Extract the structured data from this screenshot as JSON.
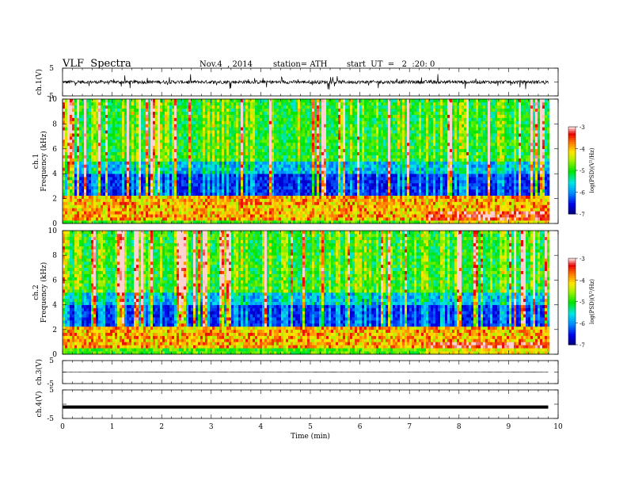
{
  "header": {
    "title": "VLF  Spectra",
    "date": "Nov.4  , 2014",
    "station": "station= ATH",
    "start": "start  UT  =   2  :20: 0"
  },
  "chart_data": [
    {
      "type": "line",
      "name": "ch1-waveform",
      "ylabel": "ch.1(V)",
      "ylim": [
        -5,
        5
      ],
      "yticks": [
        "5",
        "-5"
      ],
      "xlim": [
        0,
        10
      ],
      "x_end": 9.8,
      "baseline": 0,
      "amplitude_typical": 1.0,
      "color": "#000000"
    },
    {
      "type": "heatmap",
      "name": "ch1-spectrogram",
      "ylabel": "ch.1\nFrequency (kHz)",
      "ylim": [
        0,
        10
      ],
      "yticks": [
        "0",
        "2",
        "4",
        "6",
        "8",
        "10"
      ],
      "xlim": [
        0,
        10
      ],
      "x_end": 9.8,
      "colorbar": {
        "label": "log(PSD)(V²/Hz)",
        "range": [
          -7,
          -3
        ],
        "ticks": [
          "-3",
          "-4",
          "-5",
          "-6",
          "-7"
        ]
      },
      "bands_kHz": [
        0.3,
        0.55,
        0.8,
        1.05,
        1.3,
        1.55,
        1.8,
        2.0,
        2.25,
        2.6,
        3.0
      ],
      "lf_shift_at_min": 7.3
    },
    {
      "type": "heatmap",
      "name": "ch2-spectrogram",
      "ylabel": "ch.2\nFrequency (kHz)",
      "ylim": [
        0,
        10
      ],
      "yticks": [
        "0",
        "2",
        "4",
        "6",
        "8",
        "10"
      ],
      "xlim": [
        0,
        10
      ],
      "x_end": 9.8,
      "colorbar": {
        "label": "log(PSD)(V²/Hz)",
        "range": [
          -7,
          -3
        ],
        "ticks": [
          "-3",
          "-4",
          "-5",
          "-6",
          "-7"
        ]
      },
      "bands_kHz": [
        0.5,
        0.8,
        1.1,
        1.4,
        1.75,
        2.0,
        2.4,
        2.8,
        3.3
      ],
      "lf_shift_at_min": 7.3
    },
    {
      "type": "line",
      "name": "ch3-waveform",
      "ylabel": "ch.3(V)",
      "ylim": [
        -5,
        5
      ],
      "yticks": [
        "5",
        "-5"
      ],
      "xlim": [
        0,
        10
      ],
      "x_end": 9.8,
      "baseline": 0,
      "amplitude_typical": 0.08,
      "color": "#000000"
    },
    {
      "type": "line",
      "name": "ch4-waveform",
      "ylabel": "ch.4(V)",
      "ylim": [
        -5,
        5
      ],
      "yticks": [
        "5",
        "-5"
      ],
      "xlim": [
        0,
        10
      ],
      "x_end": 9.8,
      "baseline": -1,
      "amplitude_typical": 0.15,
      "color": "#000000",
      "xlabel": "Time  (min)",
      "xticks": [
        "0",
        "1",
        "2",
        "3",
        "4",
        "5",
        "6",
        "7",
        "8",
        "9",
        "10"
      ]
    }
  ]
}
